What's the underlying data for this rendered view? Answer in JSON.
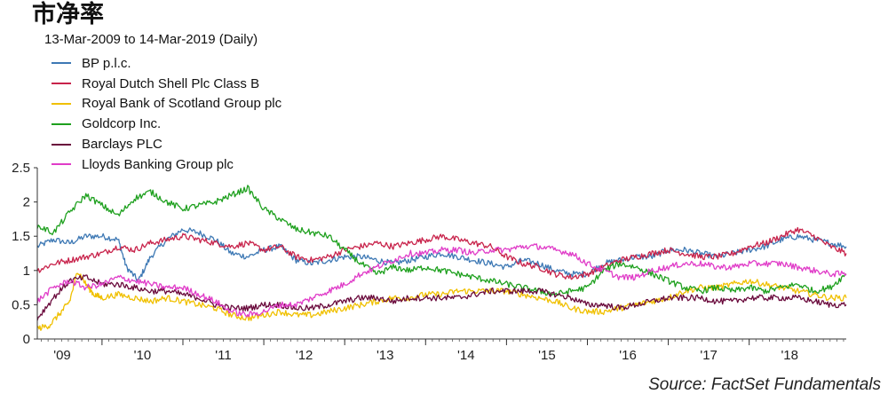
{
  "title": "市净率",
  "subtitle": "13-Mar-2009 to 14-Mar-2019 (Daily)",
  "source": "Source: FactSet Fundamentals",
  "chart_data": {
    "type": "line",
    "title": "市净率",
    "subtitle": "13-Mar-2009 to 14-Mar-2019 (Daily)",
    "x_range": [
      2009.2,
      2019.2
    ],
    "ylim": [
      0,
      2.5
    ],
    "y_ticks": [
      0,
      0.5,
      1,
      1.5,
      2,
      2.5
    ],
    "y_tick_labels": [
      "0",
      "0.5",
      "1",
      "1.5",
      "2",
      "2.5"
    ],
    "x_ticks": [
      2009,
      2010,
      2011,
      2012,
      2013,
      2014,
      2015,
      2016,
      2017,
      2018
    ],
    "x_tick_labels": [
      "'09",
      "'10",
      "'11",
      "'12",
      "'13",
      "'14",
      "'15",
      "'16",
      "'17",
      "'18"
    ],
    "grid": false,
    "legend_position": "top-left",
    "series": [
      {
        "name": "BP p.l.c.",
        "color": "#3d78b4",
        "x": [
          2009.2,
          2009.4,
          2009.6,
          2009.8,
          2010.0,
          2010.2,
          2010.3,
          2010.45,
          2010.6,
          2010.8,
          2011.0,
          2011.2,
          2011.4,
          2011.6,
          2011.8,
          2012.0,
          2012.2,
          2012.4,
          2012.6,
          2012.8,
          2013.0,
          2013.2,
          2013.4,
          2013.6,
          2013.8,
          2014.0,
          2014.2,
          2014.4,
          2014.6,
          2014.8,
          2015.0,
          2015.2,
          2015.4,
          2015.6,
          2015.8,
          2016.0,
          2016.2,
          2016.4,
          2016.6,
          2016.8,
          2017.0,
          2017.2,
          2017.4,
          2017.6,
          2017.8,
          2018.0,
          2018.2,
          2018.4,
          2018.6,
          2018.8,
          2019.0,
          2019.2
        ],
        "values": [
          1.35,
          1.45,
          1.4,
          1.5,
          1.5,
          1.45,
          1.05,
          0.85,
          1.2,
          1.45,
          1.6,
          1.55,
          1.45,
          1.25,
          1.2,
          1.3,
          1.35,
          1.15,
          1.1,
          1.15,
          1.2,
          1.2,
          1.15,
          1.1,
          1.15,
          1.2,
          1.25,
          1.2,
          1.15,
          1.1,
          1.05,
          1.15,
          1.1,
          1.0,
          0.95,
          0.95,
          1.1,
          1.15,
          1.2,
          1.2,
          1.3,
          1.3,
          1.25,
          1.2,
          1.25,
          1.3,
          1.35,
          1.45,
          1.5,
          1.45,
          1.4,
          1.35
        ]
      },
      {
        "name": "Royal Dutch Shell Plc Class B",
        "color": "#c8234b",
        "x": [
          2009.2,
          2009.4,
          2009.6,
          2009.8,
          2010.0,
          2010.2,
          2010.4,
          2010.6,
          2010.8,
          2011.0,
          2011.2,
          2011.4,
          2011.6,
          2011.8,
          2012.0,
          2012.2,
          2012.4,
          2012.6,
          2012.8,
          2013.0,
          2013.2,
          2013.4,
          2013.6,
          2013.8,
          2014.0,
          2014.2,
          2014.4,
          2014.6,
          2014.8,
          2015.0,
          2015.2,
          2015.4,
          2015.6,
          2015.8,
          2016.0,
          2016.2,
          2016.4,
          2016.6,
          2016.8,
          2017.0,
          2017.2,
          2017.4,
          2017.6,
          2017.8,
          2018.0,
          2018.2,
          2018.4,
          2018.6,
          2018.8,
          2019.0,
          2019.2
        ],
        "values": [
          1.0,
          1.1,
          1.15,
          1.2,
          1.25,
          1.35,
          1.3,
          1.4,
          1.45,
          1.5,
          1.45,
          1.4,
          1.35,
          1.4,
          1.3,
          1.35,
          1.2,
          1.15,
          1.2,
          1.3,
          1.35,
          1.4,
          1.35,
          1.4,
          1.45,
          1.5,
          1.45,
          1.4,
          1.35,
          1.2,
          1.1,
          1.05,
          0.95,
          0.9,
          0.95,
          1.05,
          1.15,
          1.2,
          1.25,
          1.3,
          1.25,
          1.2,
          1.2,
          1.25,
          1.35,
          1.4,
          1.5,
          1.6,
          1.5,
          1.35,
          1.25
        ]
      },
      {
        "name": "Royal Bank of Scotland Group plc",
        "color": "#f0c000",
        "x": [
          2009.2,
          2009.35,
          2009.5,
          2009.6,
          2009.7,
          2009.8,
          2009.9,
          2010.0,
          2010.2,
          2010.4,
          2010.6,
          2010.8,
          2011.0,
          2011.2,
          2011.4,
          2011.6,
          2011.8,
          2012.0,
          2012.2,
          2012.4,
          2012.6,
          2012.8,
          2013.0,
          2013.2,
          2013.4,
          2013.6,
          2013.8,
          2014.0,
          2014.2,
          2014.4,
          2014.6,
          2014.8,
          2015.0,
          2015.2,
          2015.4,
          2015.6,
          2015.8,
          2016.0,
          2016.2,
          2016.4,
          2016.6,
          2016.8,
          2017.0,
          2017.2,
          2017.4,
          2017.6,
          2017.8,
          2018.0,
          2018.2,
          2018.4,
          2018.6,
          2018.8,
          2019.0,
          2019.2
        ],
        "values": [
          0.15,
          0.2,
          0.4,
          0.55,
          1.0,
          0.8,
          0.65,
          0.6,
          0.65,
          0.6,
          0.55,
          0.6,
          0.55,
          0.5,
          0.45,
          0.35,
          0.3,
          0.35,
          0.4,
          0.35,
          0.35,
          0.4,
          0.45,
          0.5,
          0.55,
          0.6,
          0.6,
          0.65,
          0.65,
          0.7,
          0.7,
          0.7,
          0.7,
          0.65,
          0.6,
          0.55,
          0.45,
          0.4,
          0.4,
          0.45,
          0.5,
          0.55,
          0.6,
          0.7,
          0.75,
          0.75,
          0.8,
          0.85,
          0.8,
          0.75,
          0.7,
          0.65,
          0.6,
          0.6
        ]
      },
      {
        "name": "Goldcorp Inc.",
        "color": "#1ea01e",
        "x": [
          2009.2,
          2009.4,
          2009.6,
          2009.8,
          2010.0,
          2010.2,
          2010.4,
          2010.6,
          2010.8,
          2011.0,
          2011.2,
          2011.4,
          2011.6,
          2011.8,
          2012.0,
          2012.2,
          2012.4,
          2012.6,
          2012.8,
          2013.0,
          2013.2,
          2013.4,
          2013.6,
          2013.8,
          2014.0,
          2014.2,
          2014.4,
          2014.6,
          2014.8,
          2015.0,
          2015.2,
          2015.4,
          2015.6,
          2015.8,
          2016.0,
          2016.2,
          2016.4,
          2016.6,
          2016.8,
          2017.0,
          2017.2,
          2017.4,
          2017.6,
          2017.8,
          2018.0,
          2018.2,
          2018.4,
          2018.6,
          2018.8,
          2019.0,
          2019.2
        ],
        "values": [
          1.65,
          1.55,
          1.85,
          2.1,
          1.95,
          1.8,
          2.05,
          2.15,
          2.0,
          1.9,
          1.95,
          2.0,
          2.1,
          2.2,
          1.9,
          1.75,
          1.6,
          1.55,
          1.5,
          1.3,
          1.1,
          0.95,
          1.05,
          1.0,
          1.05,
          1.0,
          0.95,
          0.9,
          0.85,
          0.8,
          0.75,
          0.7,
          0.65,
          0.7,
          0.75,
          1.0,
          1.1,
          1.05,
          0.95,
          0.85,
          0.75,
          0.7,
          0.75,
          0.7,
          0.75,
          0.7,
          0.75,
          0.8,
          0.7,
          0.75,
          0.95
        ]
      },
      {
        "name": "Barclays PLC",
        "color": "#6a0a3c",
        "x": [
          2009.2,
          2009.4,
          2009.6,
          2009.8,
          2010.0,
          2010.2,
          2010.4,
          2010.6,
          2010.8,
          2011.0,
          2011.2,
          2011.4,
          2011.6,
          2011.8,
          2012.0,
          2012.2,
          2012.4,
          2012.6,
          2012.8,
          2013.0,
          2013.2,
          2013.4,
          2013.6,
          2013.8,
          2014.0,
          2014.2,
          2014.4,
          2014.6,
          2014.8,
          2015.0,
          2015.2,
          2015.4,
          2015.6,
          2015.8,
          2016.0,
          2016.2,
          2016.4,
          2016.6,
          2016.8,
          2017.0,
          2017.2,
          2017.4,
          2017.6,
          2017.8,
          2018.0,
          2018.2,
          2018.4,
          2018.6,
          2018.8,
          2019.0,
          2019.2
        ],
        "values": [
          0.3,
          0.6,
          0.85,
          0.9,
          0.8,
          0.8,
          0.75,
          0.7,
          0.7,
          0.65,
          0.6,
          0.5,
          0.45,
          0.45,
          0.5,
          0.5,
          0.45,
          0.45,
          0.5,
          0.55,
          0.6,
          0.6,
          0.55,
          0.6,
          0.6,
          0.6,
          0.6,
          0.65,
          0.7,
          0.7,
          0.7,
          0.7,
          0.65,
          0.6,
          0.5,
          0.5,
          0.45,
          0.5,
          0.55,
          0.6,
          0.6,
          0.6,
          0.55,
          0.55,
          0.6,
          0.6,
          0.6,
          0.6,
          0.55,
          0.5,
          0.5
        ]
      },
      {
        "name": "Lloyds Banking Group plc",
        "color": "#e03cc8",
        "x": [
          2009.2,
          2009.4,
          2009.6,
          2009.8,
          2010.0,
          2010.2,
          2010.4,
          2010.6,
          2010.8,
          2011.0,
          2011.2,
          2011.4,
          2011.6,
          2011.8,
          2012.0,
          2012.2,
          2012.4,
          2012.6,
          2012.8,
          2013.0,
          2013.2,
          2013.4,
          2013.6,
          2013.8,
          2014.0,
          2014.2,
          2014.4,
          2014.6,
          2014.8,
          2015.0,
          2015.2,
          2015.4,
          2015.6,
          2015.8,
          2016.0,
          2016.2,
          2016.4,
          2016.6,
          2016.8,
          2017.0,
          2017.2,
          2017.4,
          2017.6,
          2017.8,
          2018.0,
          2018.2,
          2018.4,
          2018.6,
          2018.8,
          2019.0,
          2019.2
        ],
        "values": [
          0.55,
          0.75,
          0.85,
          0.75,
          0.8,
          0.9,
          0.85,
          0.8,
          0.75,
          0.75,
          0.65,
          0.55,
          0.4,
          0.35,
          0.4,
          0.5,
          0.5,
          0.6,
          0.7,
          0.8,
          0.95,
          1.05,
          1.15,
          1.25,
          1.25,
          1.3,
          1.3,
          1.25,
          1.3,
          1.3,
          1.35,
          1.35,
          1.3,
          1.25,
          1.1,
          1.0,
          0.9,
          0.9,
          1.0,
          1.05,
          1.1,
          1.1,
          1.05,
          1.05,
          1.1,
          1.1,
          1.1,
          1.05,
          1.0,
          0.95,
          0.95
        ]
      }
    ]
  }
}
